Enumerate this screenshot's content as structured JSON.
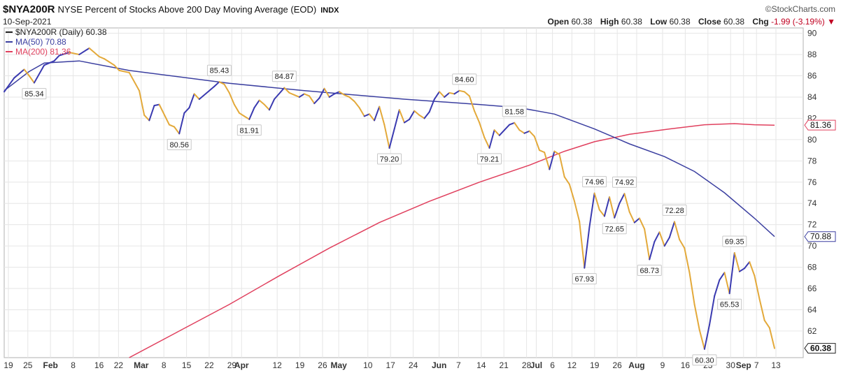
{
  "header": {
    "symbol": "$NYA200R",
    "description": "NYSE Percent of Stocks Above 200 Day Moving Average (EOD)",
    "exchange": "INDX",
    "date": "10-Sep-2021",
    "brand": "©StockCharts.com",
    "open_label": "Open",
    "open_value": "60.38",
    "high_label": "High",
    "high_value": "60.38",
    "low_label": "Low",
    "low_value": "60.38",
    "close_label": "Close",
    "close_value": "60.38",
    "chg_label": "Chg",
    "chg_value": "-1.99 (-3.19%)"
  },
  "colors": {
    "up": "#3a3ab0",
    "down": "#e3a93a",
    "ma50": "#3b3fa0",
    "ma200": "#e0405e",
    "grid": "#e6e6e6"
  },
  "chart_data": {
    "type": "line",
    "x_label": "",
    "y_label": "",
    "ylim": [
      59.5,
      90.5
    ],
    "yticks": [
      62,
      64,
      66,
      68,
      70,
      72,
      74,
      76,
      78,
      80,
      82,
      84,
      86,
      88,
      90
    ],
    "grid": true,
    "legend_position": "top-left",
    "legend": [
      {
        "label": "$NYA200R (Daily) 60.38",
        "color": "#222222"
      },
      {
        "label": "MA(50) 70.88",
        "color": "#3b3fa0"
      },
      {
        "label": "MA(200) 81.36",
        "color": "#e0405e"
      }
    ],
    "x_ticks": [
      {
        "label": "19",
        "d": 0
      },
      {
        "label": "25",
        "d": 6
      },
      {
        "label": "Feb",
        "d": 13,
        "major": true
      },
      {
        "label": "8",
        "d": 20
      },
      {
        "label": "16",
        "d": 28
      },
      {
        "label": "22",
        "d": 34
      },
      {
        "label": "Mar",
        "d": 41,
        "major": true
      },
      {
        "label": "8",
        "d": 48
      },
      {
        "label": "15",
        "d": 55
      },
      {
        "label": "22",
        "d": 62
      },
      {
        "label": "29",
        "d": 69
      },
      {
        "label": "Apr",
        "d": 72,
        "major": true
      },
      {
        "label": "12",
        "d": 83
      },
      {
        "label": "19",
        "d": 90
      },
      {
        "label": "26",
        "d": 97
      },
      {
        "label": "May",
        "d": 102,
        "major": true
      },
      {
        "label": "10",
        "d": 111
      },
      {
        "label": "17",
        "d": 118
      },
      {
        "label": "24",
        "d": 125
      },
      {
        "label": "Jun",
        "d": 133,
        "major": true
      },
      {
        "label": "7",
        "d": 139
      },
      {
        "label": "14",
        "d": 146
      },
      {
        "label": "21",
        "d": 153
      },
      {
        "label": "28",
        "d": 160
      },
      {
        "label": "Jul",
        "d": 163,
        "major": true
      },
      {
        "label": "6",
        "d": 168
      },
      {
        "label": "12",
        "d": 174
      },
      {
        "label": "19",
        "d": 181
      },
      {
        "label": "26",
        "d": 188
      },
      {
        "label": "Aug",
        "d": 194,
        "major": true
      },
      {
        "label": "9",
        "d": 202
      },
      {
        "label": "16",
        "d": 209
      },
      {
        "label": "23",
        "d": 216
      },
      {
        "label": "30",
        "d": 223
      },
      {
        "label": "Sep",
        "d": 227,
        "major": true
      },
      {
        "label": "7",
        "d": 231
      },
      {
        "label": "13",
        "d": 237
      }
    ],
    "series_price": {
      "name": "$NYA200R",
      "points": [
        [
          0,
          84.5
        ],
        [
          2,
          85.8
        ],
        [
          4,
          86.6
        ],
        [
          5,
          86.0
        ],
        [
          6,
          85.34
        ],
        [
          8,
          87.0
        ],
        [
          10,
          87.4
        ],
        [
          11,
          87.9
        ],
        [
          13,
          88.2
        ],
        [
          15,
          88.0
        ],
        [
          17,
          88.6
        ],
        [
          19,
          87.8
        ],
        [
          20,
          87.6
        ],
        [
          22,
          87.0
        ],
        [
          23,
          86.5
        ],
        [
          25,
          86.3
        ],
        [
          27,
          84.6
        ],
        [
          28,
          82.3
        ],
        [
          29,
          81.8
        ],
        [
          30,
          83.2
        ],
        [
          31,
          83.3
        ],
        [
          33,
          81.4
        ],
        [
          34,
          81.2
        ],
        [
          35,
          80.56
        ],
        [
          36,
          82.5
        ],
        [
          37,
          83.0
        ],
        [
          38,
          84.3
        ],
        [
          39,
          83.8
        ],
        [
          41,
          84.6
        ],
        [
          42,
          85.0
        ],
        [
          43,
          85.43
        ],
        [
          44,
          85.2
        ],
        [
          45,
          84.4
        ],
        [
          46,
          83.3
        ],
        [
          47,
          82.5
        ],
        [
          48,
          82.2
        ],
        [
          49,
          81.91
        ],
        [
          50,
          83.0
        ],
        [
          51,
          83.7
        ],
        [
          52,
          83.3
        ],
        [
          53,
          82.8
        ],
        [
          54,
          83.8
        ],
        [
          56,
          84.87
        ],
        [
          57,
          84.4
        ],
        [
          58,
          84.2
        ],
        [
          59,
          84.0
        ],
        [
          60,
          84.3
        ],
        [
          61,
          84.1
        ],
        [
          62,
          83.4
        ],
        [
          63,
          83.9
        ],
        [
          64,
          84.8
        ],
        [
          65,
          84.0
        ],
        [
          66,
          84.3
        ],
        [
          67,
          84.5
        ],
        [
          68,
          84.2
        ],
        [
          69,
          84.0
        ],
        [
          70,
          83.6
        ],
        [
          71,
          83.0
        ],
        [
          72,
          82.2
        ],
        [
          73,
          82.4
        ],
        [
          74,
          81.8
        ],
        [
          75,
          83.1
        ],
        [
          76,
          81.4
        ],
        [
          77,
          79.2
        ],
        [
          78,
          81.0
        ],
        [
          79,
          82.8
        ],
        [
          80,
          81.6
        ],
        [
          81,
          81.9
        ],
        [
          82,
          82.7
        ],
        [
          83,
          82.3
        ],
        [
          84,
          82.0
        ],
        [
          85,
          82.6
        ],
        [
          86,
          83.8
        ],
        [
          87,
          84.5
        ],
        [
          88,
          84.0
        ],
        [
          89,
          84.4
        ],
        [
          90,
          84.3
        ],
        [
          91,
          84.6
        ],
        [
          92,
          84.5
        ],
        [
          93,
          84.1
        ],
        [
          94,
          82.7
        ],
        [
          95,
          81.6
        ],
        [
          96,
          80.2
        ],
        [
          97,
          79.21
        ],
        [
          98,
          80.9
        ],
        [
          99,
          80.4
        ],
        [
          100,
          80.9
        ],
        [
          101,
          81.4
        ],
        [
          102,
          81.58
        ],
        [
          103,
          80.9
        ],
        [
          104,
          80.6
        ],
        [
          105,
          80.8
        ],
        [
          106,
          80.3
        ],
        [
          107,
          79.0
        ],
        [
          108,
          78.8
        ],
        [
          109,
          77.2
        ],
        [
          110,
          78.9
        ],
        [
          111,
          78.6
        ],
        [
          112,
          76.5
        ],
        [
          113,
          75.8
        ],
        [
          114,
          74.2
        ],
        [
          115,
          72.3
        ],
        [
          116,
          67.93
        ],
        [
          117,
          71.8
        ],
        [
          118,
          74.96
        ],
        [
          119,
          73.4
        ],
        [
          120,
          72.8
        ],
        [
          121,
          74.6
        ],
        [
          122,
          72.65
        ],
        [
          123,
          74.0
        ],
        [
          124,
          74.92
        ],
        [
          125,
          73.2
        ],
        [
          126,
          72.2
        ],
        [
          127,
          72.6
        ],
        [
          128,
          71.6
        ],
        [
          129,
          68.73
        ],
        [
          130,
          70.4
        ],
        [
          131,
          71.3
        ],
        [
          132,
          70.0
        ],
        [
          133,
          70.8
        ],
        [
          134,
          72.28
        ],
        [
          135,
          70.6
        ],
        [
          136,
          69.8
        ],
        [
          137,
          67.5
        ],
        [
          138,
          64.5
        ],
        [
          139,
          62.1
        ],
        [
          140,
          60.3
        ],
        [
          141,
          62.6
        ],
        [
          142,
          65.3
        ],
        [
          143,
          66.8
        ],
        [
          144,
          67.5
        ],
        [
          145,
          65.53
        ],
        [
          146,
          69.35
        ],
        [
          147,
          67.6
        ],
        [
          148,
          67.9
        ],
        [
          149,
          68.5
        ],
        [
          150,
          67.2
        ],
        [
          151,
          65.0
        ],
        [
          152,
          63.0
        ],
        [
          153,
          62.3
        ],
        [
          154,
          60.38
        ]
      ],
      "last_value": "60.38"
    },
    "series_ma50": {
      "name": "MA(50)",
      "points": [
        [
          0,
          84.6
        ],
        [
          5,
          86.4
        ],
        [
          8,
          87.2
        ],
        [
          15,
          87.4
        ],
        [
          25,
          86.5
        ],
        [
          45,
          85.3
        ],
        [
          60,
          84.6
        ],
        [
          80,
          83.8
        ],
        [
          95,
          83.3
        ],
        [
          103,
          83.0
        ],
        [
          110,
          82.4
        ],
        [
          118,
          81.0
        ],
        [
          125,
          79.6
        ],
        [
          132,
          78.4
        ],
        [
          138,
          77.0
        ],
        [
          144,
          75.0
        ],
        [
          150,
          72.6
        ],
        [
          154,
          70.88
        ]
      ],
      "last_value": "70.88"
    },
    "series_ma200": {
      "name": "MA(200)",
      "points": [
        [
          25,
          59.5
        ],
        [
          35,
          62.0
        ],
        [
          45,
          64.5
        ],
        [
          55,
          67.2
        ],
        [
          65,
          69.8
        ],
        [
          75,
          72.2
        ],
        [
          85,
          74.2
        ],
        [
          95,
          76.0
        ],
        [
          105,
          77.6
        ],
        [
          112,
          78.9
        ],
        [
          118,
          79.8
        ],
        [
          125,
          80.5
        ],
        [
          133,
          81.0
        ],
        [
          140,
          81.4
        ],
        [
          146,
          81.5
        ],
        [
          150,
          81.4
        ],
        [
          154,
          81.36
        ]
      ],
      "last_value": "81.36"
    },
    "annotations": [
      {
        "label": "85.34",
        "t": 6,
        "v": 85.34,
        "pos": "below"
      },
      {
        "label": "80.56",
        "t": 35,
        "v": 80.56,
        "pos": "below"
      },
      {
        "label": "85.43",
        "t": 43,
        "v": 85.43,
        "pos": "above"
      },
      {
        "label": "81.91",
        "t": 49,
        "v": 81.91,
        "pos": "below"
      },
      {
        "label": "84.87",
        "t": 56,
        "v": 84.87,
        "pos": "above"
      },
      {
        "label": "79.20",
        "t": 77,
        "v": 79.2,
        "pos": "below"
      },
      {
        "label": "84.60",
        "t": 92,
        "v": 84.6,
        "pos": "above"
      },
      {
        "label": "79.21",
        "t": 97,
        "v": 79.21,
        "pos": "below"
      },
      {
        "label": "81.58",
        "t": 102,
        "v": 81.58,
        "pos": "above"
      },
      {
        "label": "67.93",
        "t": 116,
        "v": 67.93,
        "pos": "below"
      },
      {
        "label": "74.96",
        "t": 118,
        "v": 74.96,
        "pos": "above"
      },
      {
        "label": "72.65",
        "t": 122,
        "v": 72.65,
        "pos": "below"
      },
      {
        "label": "74.92",
        "t": 124,
        "v": 74.92,
        "pos": "above"
      },
      {
        "label": "68.73",
        "t": 129,
        "v": 68.73,
        "pos": "below"
      },
      {
        "label": "72.28",
        "t": 134,
        "v": 72.28,
        "pos": "above"
      },
      {
        "label": "60.30",
        "t": 140,
        "v": 60.3,
        "pos": "below"
      },
      {
        "label": "65.53",
        "t": 145,
        "v": 65.53,
        "pos": "below"
      },
      {
        "label": "69.35",
        "t": 146,
        "v": 69.35,
        "pos": "above"
      }
    ]
  }
}
